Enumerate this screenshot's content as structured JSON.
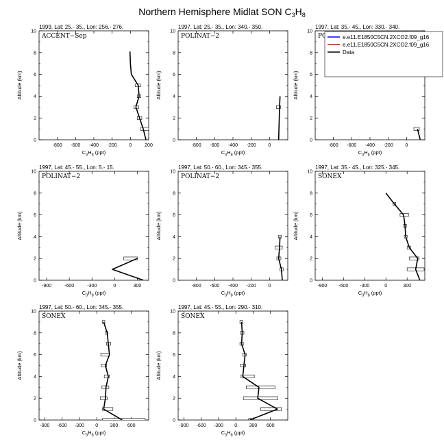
{
  "title": {
    "main": "Northern Hemisphere Midlat SON C",
    "sub3": "3",
    "mid": "H",
    "sub8": "8"
  },
  "xlabel": {
    "pre": "C",
    "s3": "3",
    "mid": "H",
    "s8": "8",
    "post": " (ppt)"
  },
  "ylabel": "Altitude (km)",
  "legend": {
    "items": [
      {
        "label": "e.e11.E1850C5CN.2XCO2.f09_g16",
        "color": "#0000ff"
      },
      {
        "label": "e.e11.E1850C5CN.2XCO2.f09_g16",
        "color": "#ff0000"
      },
      {
        "label": "Data",
        "color": "#000000"
      }
    ]
  },
  "chart_data": [
    {
      "type": "line",
      "title": "1999, Lat: 25.- 35., Lon: 256.- 276.",
      "campaign": "ACCENT−Sep",
      "xlim": [
        -1000,
        200
      ],
      "xticks": [
        -800,
        -600,
        -400,
        -200,
        0,
        200
      ],
      "ylim": [
        0,
        10
      ],
      "yticks": [
        0,
        2,
        4,
        6,
        8,
        10
      ],
      "data": [
        {
          "alt": 0.0,
          "x": 170
        },
        {
          "alt": 1.0,
          "x": 140,
          "lo": 110,
          "hi": 200
        },
        {
          "alt": 2.0,
          "x": 100,
          "lo": 75,
          "hi": 125
        },
        {
          "alt": 3.0,
          "x": 60,
          "lo": 40,
          "hi": 90
        },
        {
          "alt": 4.0,
          "x": 95,
          "lo": 75,
          "hi": 115
        },
        {
          "alt": 5.0,
          "x": 85,
          "lo": 55,
          "hi": 110
        },
        {
          "alt": 6.0,
          "x": 10
        },
        {
          "alt": 7.0,
          "x": 0
        },
        {
          "alt": 8.1,
          "x": -5
        }
      ]
    },
    {
      "type": "line",
      "title": "1997, Lat: 25.- 35., Lon: 340.- 350.",
      "campaign": "POLINAT−2",
      "xlim": [
        -1000,
        200
      ],
      "xticks": [
        -800,
        -600,
        -400,
        -200,
        0
      ],
      "ylim": [
        0,
        10
      ],
      "yticks": [
        0,
        2,
        4,
        6,
        8,
        10
      ],
      "data": [
        {
          "alt": 0.0,
          "x": 100
        },
        {
          "alt": 3.0,
          "x": 110,
          "lo": 75,
          "hi": 120
        },
        {
          "alt": 4.0,
          "x": 115
        }
      ]
    },
    {
      "type": "line",
      "title": "1997, Lat: 35.- 45., Lon: 330.- 340.",
      "campaign": "POLINAT−2",
      "xlim": [
        -1000,
        200
      ],
      "xticks": [
        -800,
        -600,
        -400,
        -200,
        0
      ],
      "ylim": [
        0,
        10
      ],
      "yticks": [
        0,
        2,
        4,
        6,
        8,
        10
      ],
      "data": [
        {
          "alt": 0.0,
          "x": 150
        },
        {
          "alt": 1.0,
          "x": 120,
          "lo": 80,
          "hi": 140
        }
      ]
    },
    {
      "type": "line",
      "title": "1997, Lat: 45.- 55., Lon: 5.- 15.",
      "campaign": "POLINAT−2",
      "xlim": [
        -1000,
        450
      ],
      "xticks": [
        -900,
        -600,
        -300,
        0,
        300
      ],
      "ylim": [
        0,
        10
      ],
      "yticks": [
        0,
        2,
        4,
        6,
        8,
        10
      ],
      "data": [
        {
          "alt": 0.0,
          "x": 380
        },
        {
          "alt": 1.0,
          "x": -30
        },
        {
          "alt": 2.0,
          "x": 300,
          "lo": 120,
          "hi": 300
        }
      ]
    },
    {
      "type": "line",
      "title": "1997, Lat: 50.- 60., Lon: 345.- 355.",
      "campaign": "POLINAT−2",
      "xlim": [
        -1000,
        200
      ],
      "xticks": [
        -800,
        -600,
        -400,
        -200,
        0
      ],
      "ylim": [
        0,
        10
      ],
      "yticks": [
        0,
        2,
        4,
        6,
        8,
        10
      ],
      "data": [
        {
          "alt": 0.0,
          "x": 140
        },
        {
          "alt": 1.0,
          "x": 130,
          "lo": 115,
          "hi": 150
        },
        {
          "alt": 2.0,
          "x": 100,
          "lo": 80,
          "hi": 125
        },
        {
          "alt": 3.0,
          "x": 110,
          "lo": 60,
          "hi": 140
        },
        {
          "alt": 4.0,
          "x": 115,
          "lo": 100,
          "hi": 130
        }
      ]
    },
    {
      "type": "line",
      "title": "1997, Lat: 35.- 45., Lon: 325.- 345.",
      "campaign": "SONEX",
      "xlim": [
        -1000,
        550
      ],
      "xticks": [
        -900,
        -600,
        -300,
        0,
        300
      ],
      "ylim": [
        0,
        10
      ],
      "yticks": [
        0,
        2,
        4,
        6,
        8,
        10
      ],
      "data": [
        {
          "alt": 0.0,
          "x": 480
        },
        {
          "alt": 1.0,
          "x": 420,
          "lo": 300,
          "hi": 540
        },
        {
          "alt": 2.0,
          "x": 450,
          "lo": 330,
          "hi": 470
        },
        {
          "alt": 3.0,
          "x": 330,
          "lo": 300,
          "hi": 350
        },
        {
          "alt": 4.0,
          "x": 280,
          "lo": 260,
          "hi": 300
        },
        {
          "alt": 5.0,
          "x": 270,
          "lo": 250,
          "hi": 290
        },
        {
          "alt": 6.0,
          "x": 250,
          "lo": 200,
          "hi": 320
        },
        {
          "alt": 7.0,
          "x": 120,
          "lo": 100,
          "hi": 140
        },
        {
          "alt": 8.0,
          "x": 0
        }
      ]
    },
    {
      "type": "line",
      "title": "1997, Lat: 50.- 60., Lon: 345.- 355.",
      "campaign": "SONEX",
      "xlim": [
        -1000,
        900
      ],
      "xticks": [
        -900,
        -600,
        -300,
        0,
        300,
        600
      ],
      "ylim": [
        0,
        10
      ],
      "yticks": [
        0,
        2,
        4,
        6,
        8,
        10
      ],
      "data": [
        {
          "alt": 0.0,
          "x": 440,
          "lo": 100,
          "hi": 840
        },
        {
          "alt": 1.0,
          "x": 120,
          "lo": 100,
          "hi": 280
        },
        {
          "alt": 2.0,
          "x": 150,
          "lo": 60,
          "hi": 180
        },
        {
          "alt": 3.0,
          "x": 160,
          "lo": 90,
          "hi": 210
        },
        {
          "alt": 4.0,
          "x": 200,
          "lo": 130,
          "hi": 220
        },
        {
          "alt": 5.0,
          "x": 150,
          "lo": 80,
          "hi": 170
        },
        {
          "alt": 6.0,
          "x": 220,
          "lo": 70,
          "hi": 220
        },
        {
          "alt": 7.0,
          "x": 200,
          "lo": 170,
          "hi": 240
        },
        {
          "alt": 8.0,
          "x": 180,
          "lo": 150,
          "hi": 190
        },
        {
          "alt": 9.0,
          "x": 120,
          "lo": 100,
          "hi": 140
        }
      ]
    },
    {
      "type": "line",
      "title": "1997, Lat: 45.- 55., Lon: 290.- 310.",
      "campaign": "SONEX",
      "xlim": [
        -1000,
        900
      ],
      "xticks": [
        -900,
        -600,
        -300,
        0,
        300,
        600
      ],
      "ylim": [
        0,
        10
      ],
      "yticks": [
        0,
        2,
        4,
        6,
        8,
        10
      ],
      "data": [
        {
          "alt": 0.0,
          "x": 240,
          "lo": 220,
          "hi": 280
        },
        {
          "alt": 1.0,
          "x": 720,
          "lo": 430,
          "hi": 790
        },
        {
          "alt": 2.0,
          "x": 380,
          "lo": 130,
          "hi": 730
        },
        {
          "alt": 3.0,
          "x": 400,
          "lo": 180,
          "hi": 680
        },
        {
          "alt": 4.0,
          "x": 120,
          "lo": 90,
          "hi": 320
        },
        {
          "alt": 5.0,
          "x": 140,
          "lo": 80,
          "hi": 170
        },
        {
          "alt": 6.0,
          "x": 160,
          "lo": 120,
          "hi": 180
        },
        {
          "alt": 7.0,
          "x": 100,
          "lo": 70,
          "hi": 130
        },
        {
          "alt": 8.0,
          "x": 110,
          "lo": 80,
          "hi": 140
        },
        {
          "alt": 9.0,
          "x": 100,
          "lo": 70,
          "hi": 120
        }
      ]
    }
  ]
}
